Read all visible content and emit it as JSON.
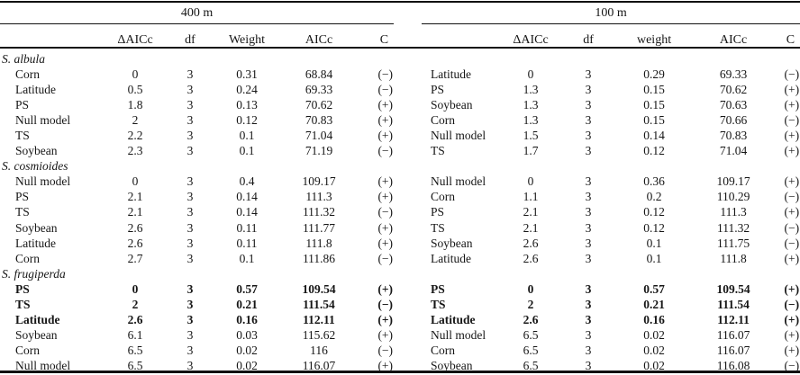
{
  "table": {
    "description": "AICc model selection table",
    "panels": [
      {
        "scale_label": "400 m",
        "columns": [
          "ΔAICc",
          "df",
          "Weight",
          "AICc",
          "C"
        ],
        "groups": [
          {
            "species": "S. albula",
            "rows": [
              {
                "label": "Corn",
                "dAICc": "0",
                "df": "3",
                "weight": "0.31",
                "AICc": "68.84",
                "C": "(−)",
                "bold": false
              },
              {
                "label": "Latitude",
                "dAICc": "0.5",
                "df": "3",
                "weight": "0.24",
                "AICc": "69.33",
                "C": "(−)",
                "bold": false
              },
              {
                "label": "PS",
                "dAICc": "1.8",
                "df": "3",
                "weight": "0.13",
                "AICc": "70.62",
                "C": "(+)",
                "bold": false
              },
              {
                "label": "Null model",
                "dAICc": "2",
                "df": "3",
                "weight": "0.12",
                "AICc": "70.83",
                "C": "(+)",
                "bold": false
              },
              {
                "label": "TS",
                "dAICc": "2.2",
                "df": "3",
                "weight": "0.1",
                "AICc": "71.04",
                "C": "(+)",
                "bold": false
              },
              {
                "label": "Soybean",
                "dAICc": "2.3",
                "df": "3",
                "weight": "0.1",
                "AICc": "71.19",
                "C": "(−)",
                "bold": false
              }
            ]
          },
          {
            "species": "S. cosmioides",
            "rows": [
              {
                "label": "Null model",
                "dAICc": "0",
                "df": "3",
                "weight": "0.4",
                "AICc": "109.17",
                "C": "(+)",
                "bold": false
              },
              {
                "label": "PS",
                "dAICc": "2.1",
                "df": "3",
                "weight": "0.14",
                "AICc": "111.3",
                "C": "(+)",
                "bold": false
              },
              {
                "label": "TS",
                "dAICc": "2.1",
                "df": "3",
                "weight": "0.14",
                "AICc": "111.32",
                "C": "(−)",
                "bold": false
              },
              {
                "label": "Soybean",
                "dAICc": "2.6",
                "df": "3",
                "weight": "0.11",
                "AICc": "111.77",
                "C": "(+)",
                "bold": false
              },
              {
                "label": "Latitude",
                "dAICc": "2.6",
                "df": "3",
                "weight": "0.11",
                "AICc": "111.8",
                "C": "(+)",
                "bold": false
              },
              {
                "label": "Corn",
                "dAICc": "2.7",
                "df": "3",
                "weight": "0.1",
                "AICc": "111.86",
                "C": "(−)",
                "bold": false
              }
            ]
          },
          {
            "species": "S. frugiperda",
            "rows": [
              {
                "label": "PS",
                "dAICc": "0",
                "df": "3",
                "weight": "0.57",
                "AICc": "109.54",
                "C": "(+)",
                "bold": true
              },
              {
                "label": "TS",
                "dAICc": "2",
                "df": "3",
                "weight": "0.21",
                "AICc": "111.54",
                "C": "(−)",
                "bold": true
              },
              {
                "label": "Latitude",
                "dAICc": "2.6",
                "df": "3",
                "weight": "0.16",
                "AICc": "112.11",
                "C": "(+)",
                "bold": true
              },
              {
                "label": "Soybean",
                "dAICc": "6.1",
                "df": "3",
                "weight": "0.03",
                "AICc": "115.62",
                "C": "(+)",
                "bold": false
              },
              {
                "label": "Corn",
                "dAICc": "6.5",
                "df": "3",
                "weight": "0.02",
                "AICc": "116",
                "C": "(−)",
                "bold": false
              },
              {
                "label": "Null model",
                "dAICc": "6.5",
                "df": "3",
                "weight": "0.02",
                "AICc": "116.07",
                "C": "(+)",
                "bold": false
              }
            ]
          }
        ]
      },
      {
        "scale_label": "100 m",
        "columns": [
          "ΔAICc",
          "df",
          "weight",
          "AICc",
          "C"
        ],
        "groups": [
          {
            "species": "",
            "rows": [
              {
                "label": "Latitude",
                "dAICc": "0",
                "df": "3",
                "weight": "0.29",
                "AICc": "69.33",
                "C": "(−)",
                "bold": false
              },
              {
                "label": "PS",
                "dAICc": "1.3",
                "df": "3",
                "weight": "0.15",
                "AICc": "70.62",
                "C": "(+)",
                "bold": false
              },
              {
                "label": "Soybean",
                "dAICc": "1.3",
                "df": "3",
                "weight": "0.15",
                "AICc": "70.63",
                "C": "(+)",
                "bold": false
              },
              {
                "label": "Corn",
                "dAICc": "1.3",
                "df": "3",
                "weight": "0.15",
                "AICc": "70.66",
                "C": "(−)",
                "bold": false
              },
              {
                "label": "Null model",
                "dAICc": "1.5",
                "df": "3",
                "weight": "0.14",
                "AICc": "70.83",
                "C": "(+)",
                "bold": false
              },
              {
                "label": "TS",
                "dAICc": "1.7",
                "df": "3",
                "weight": "0.12",
                "AICc": "71.04",
                "C": "(+)",
                "bold": false
              }
            ]
          },
          {
            "species": "",
            "rows": [
              {
                "label": "Null model",
                "dAICc": "0",
                "df": "3",
                "weight": "0.36",
                "AICc": "109.17",
                "C": "(+)",
                "bold": false
              },
              {
                "label": "Corn",
                "dAICc": "1.1",
                "df": "3",
                "weight": "0.2",
                "AICc": "110.29",
                "C": "(−)",
                "bold": false
              },
              {
                "label": "PS",
                "dAICc": "2.1",
                "df": "3",
                "weight": "0.12",
                "AICc": "111.3",
                "C": "(+)",
                "bold": false
              },
              {
                "label": "TS",
                "dAICc": "2.1",
                "df": "3",
                "weight": "0.12",
                "AICc": "111.32",
                "C": "(−)",
                "bold": false
              },
              {
                "label": "Soybean",
                "dAICc": "2.6",
                "df": "3",
                "weight": "0.1",
                "AICc": "111.75",
                "C": "(−)",
                "bold": false
              },
              {
                "label": "Latitude",
                "dAICc": "2.6",
                "df": "3",
                "weight": "0.1",
                "AICc": "111.8",
                "C": "(+)",
                "bold": false
              }
            ]
          },
          {
            "species": "",
            "rows": [
              {
                "label": "PS",
                "dAICc": "0",
                "df": "3",
                "weight": "0.57",
                "AICc": "109.54",
                "C": "(+)",
                "bold": true
              },
              {
                "label": "TS",
                "dAICc": "2",
                "df": "3",
                "weight": "0.21",
                "AICc": "111.54",
                "C": "(−)",
                "bold": true
              },
              {
                "label": "Latitude",
                "dAICc": "2.6",
                "df": "3",
                "weight": "0.16",
                "AICc": "112.11",
                "C": "(+)",
                "bold": true
              },
              {
                "label": "Null model",
                "dAICc": "6.5",
                "df": "3",
                "weight": "0.02",
                "AICc": "116.07",
                "C": "(+)",
                "bold": false
              },
              {
                "label": "Corn",
                "dAICc": "6.5",
                "df": "3",
                "weight": "0.02",
                "AICc": "116.07",
                "C": "(+)",
                "bold": false
              },
              {
                "label": "Soybean",
                "dAICc": "6.5",
                "df": "3",
                "weight": "0.02",
                "AICc": "116.08",
                "C": "(−)",
                "bold": false
              }
            ]
          }
        ]
      }
    ]
  }
}
